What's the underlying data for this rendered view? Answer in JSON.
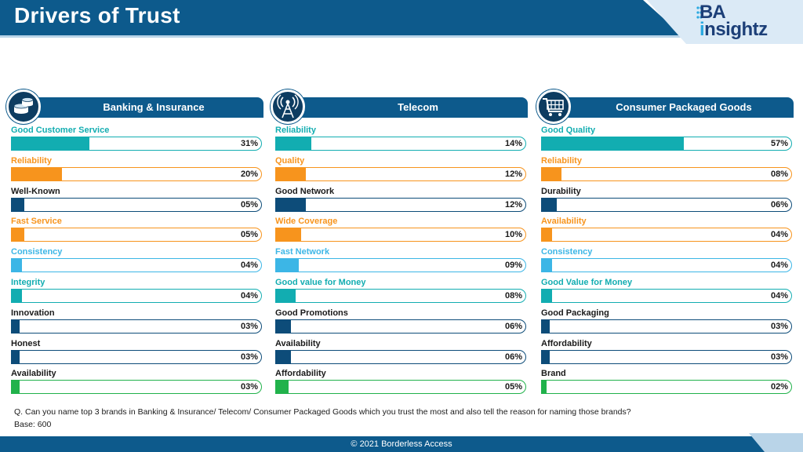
{
  "header": {
    "title": "Drivers of Trust"
  },
  "logo": {
    "top": "BA",
    "bottom_i": "i",
    "bottom_rest": "nsightz"
  },
  "colors": {
    "teal": "#12adb1",
    "orange": "#f7941d",
    "navy": "#0d4c79",
    "sky": "#3cb6e6",
    "green": "#21b24b",
    "brand": "#0d5a8c"
  },
  "chart_data": [
    {
      "type": "bar",
      "title": "Banking & Insurance",
      "icon": "coins-icon",
      "categories": [
        "Good Customer Service",
        "Reliability",
        "Well-Known",
        "Fast Service",
        "Consistency",
        "Integrity",
        "Innovation",
        "Honest",
        "Availability"
      ],
      "values": [
        31,
        20,
        5,
        5,
        4,
        4,
        3,
        3,
        3
      ],
      "labels": [
        "31%",
        "20%",
        "05%",
        "05%",
        "04%",
        "04%",
        "03%",
        "03%",
        "03%"
      ],
      "colors": [
        "teal",
        "orange",
        "navy",
        "orange",
        "sky",
        "teal",
        "navy",
        "navy",
        "green"
      ],
      "xlim": [
        0,
        100
      ]
    },
    {
      "type": "bar",
      "title": "Telecom",
      "icon": "signal-tower-icon",
      "categories": [
        "Reliability",
        "Quality",
        "Good Network",
        "Wide Coverage",
        "Fast Network",
        "Good value for Money",
        "Good Promotions",
        "Availability",
        "Affordability"
      ],
      "values": [
        14,
        12,
        12,
        10,
        9,
        8,
        6,
        6,
        5
      ],
      "labels": [
        "14%",
        "12%",
        "12%",
        "10%",
        "09%",
        "08%",
        "06%",
        "06%",
        "05%"
      ],
      "colors": [
        "teal",
        "orange",
        "navy",
        "orange",
        "sky",
        "teal",
        "navy",
        "navy",
        "green"
      ],
      "xlim": [
        0,
        100
      ]
    },
    {
      "type": "bar",
      "title": "Consumer Packaged Goods",
      "icon": "shopping-cart-icon",
      "categories": [
        "Good Quality",
        "Reliability",
        "Durability",
        "Availability",
        "Consistency",
        "Good Value for Money",
        "Good Packaging",
        "Affordability",
        "Brand"
      ],
      "values": [
        57,
        8,
        6,
        4,
        4,
        4,
        3,
        3,
        2
      ],
      "labels": [
        "57%",
        "08%",
        "06%",
        "04%",
        "04%",
        "04%",
        "03%",
        "03%",
        "02%"
      ],
      "colors": [
        "teal",
        "orange",
        "navy",
        "orange",
        "sky",
        "teal",
        "navy",
        "navy",
        "green"
      ],
      "xlim": [
        0,
        100
      ]
    }
  ],
  "footer": {
    "question": "Q. Can you name top 3 brands in Banking & Insurance/ Telecom/ Consumer Packaged Goods which you trust the most and also tell the reason for naming those brands?",
    "base": "Base: 600",
    "copyright": "© 2021  Borderless Access"
  }
}
